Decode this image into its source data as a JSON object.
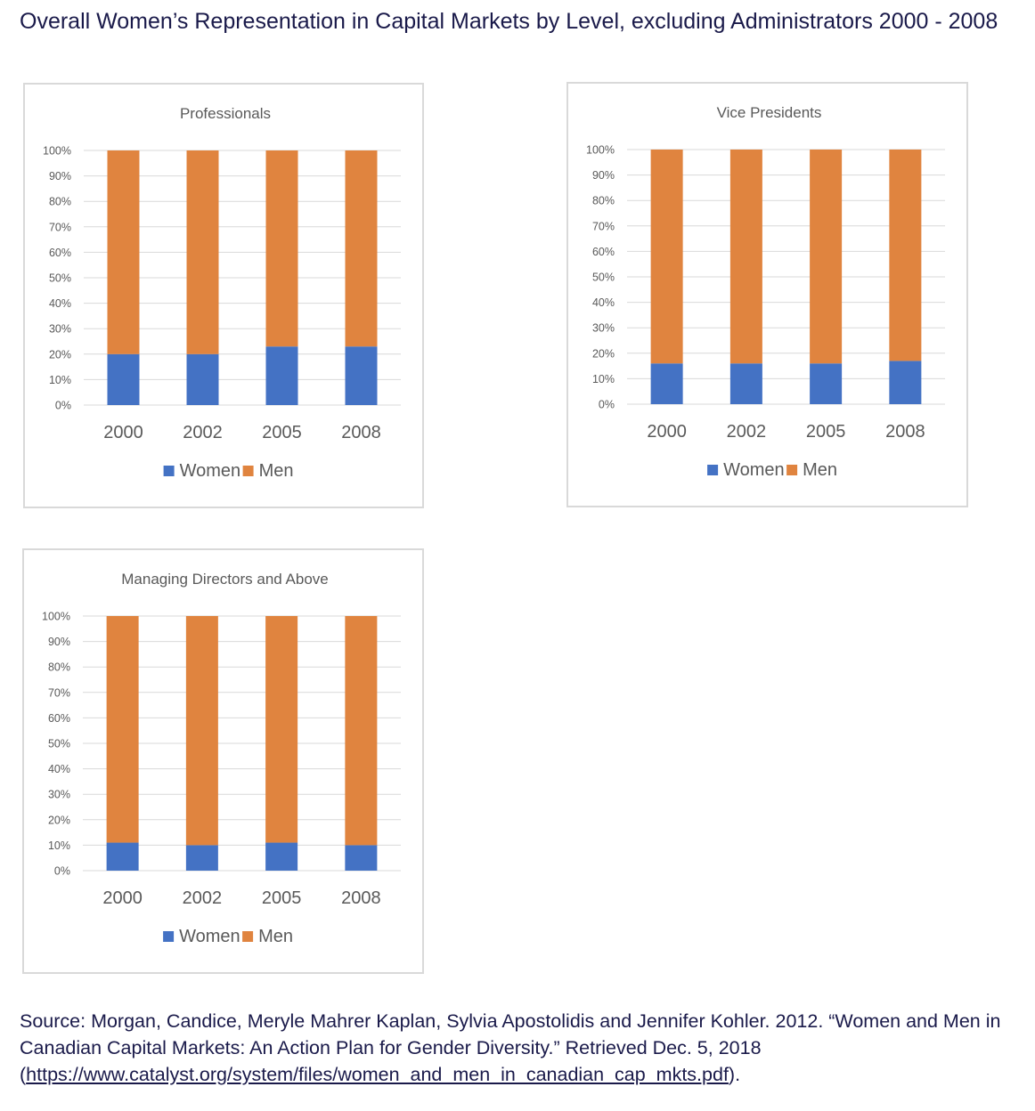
{
  "title": "Overall Women’s Representation in Capital Markets by Level, excluding Administrators 2000 - 2008",
  "colors": {
    "women": "#4472c4",
    "men": "#e0843f",
    "grid": "#d9d9d9",
    "axis_text": "#595959"
  },
  "chart_data": [
    {
      "type": "bar",
      "stacked": "percent",
      "title": "Professionals",
      "categories": [
        "2000",
        "2002",
        "2005",
        "2008"
      ],
      "series": [
        {
          "name": "Women",
          "values": [
            20,
            20,
            23,
            23
          ]
        },
        {
          "name": "Men",
          "values": [
            80,
            80,
            77,
            77
          ]
        }
      ],
      "ylim": [
        0,
        100
      ],
      "yticks": [
        "0%",
        "10%",
        "20%",
        "30%",
        "40%",
        "50%",
        "60%",
        "70%",
        "80%",
        "90%",
        "100%"
      ],
      "grid": true,
      "legend": "bottom"
    },
    {
      "type": "bar",
      "stacked": "percent",
      "title": "Vice Presidents",
      "categories": [
        "2000",
        "2002",
        "2005",
        "2008"
      ],
      "series": [
        {
          "name": "Women",
          "values": [
            16,
            16,
            16,
            17
          ]
        },
        {
          "name": "Men",
          "values": [
            84,
            84,
            84,
            83
          ]
        }
      ],
      "ylim": [
        0,
        100
      ],
      "yticks": [
        "0%",
        "10%",
        "20%",
        "30%",
        "40%",
        "50%",
        "60%",
        "70%",
        "80%",
        "90%",
        "100%"
      ],
      "grid": true,
      "legend": "bottom"
    },
    {
      "type": "bar",
      "stacked": "percent",
      "title": "Managing Directors and Above",
      "categories": [
        "2000",
        "2002",
        "2005",
        "2008"
      ],
      "series": [
        {
          "name": "Women",
          "values": [
            11,
            10,
            11,
            10
          ]
        },
        {
          "name": "Men",
          "values": [
            89,
            90,
            89,
            90
          ]
        }
      ],
      "ylim": [
        0,
        100
      ],
      "yticks": [
        "0%",
        "10%",
        "20%",
        "30%",
        "40%",
        "50%",
        "60%",
        "70%",
        "80%",
        "90%",
        "100%"
      ],
      "grid": true,
      "legend": "bottom"
    }
  ],
  "source": {
    "text_before": "Source: Morgan, Candice, Meryle Mahrer Kaplan, Sylvia Apostolidis and Jennifer Kohler. 2012. “Women and Men in Canadian Capital Markets: An Action Plan for Gender Diversity.” Retrieved Dec. 5, 2018 (",
    "link": "https://www.catalyst.org/system/files/women_and_men_in_canadian_cap_mkts.pdf",
    "text_after": ")."
  }
}
